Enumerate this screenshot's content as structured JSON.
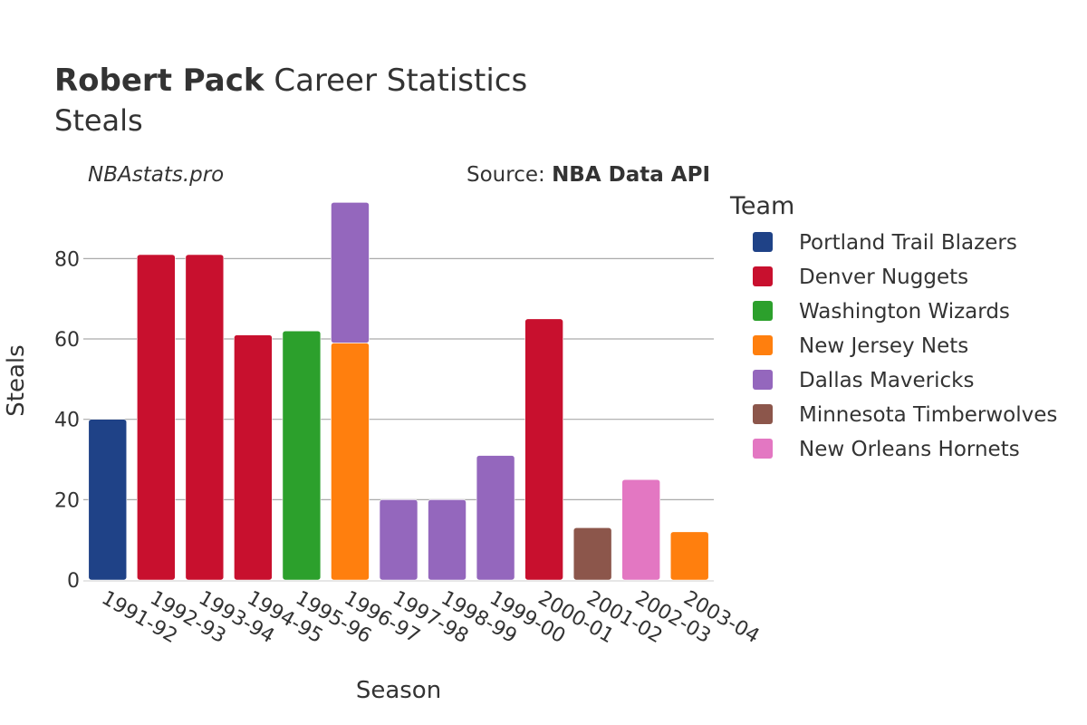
{
  "chart_data": {
    "type": "bar",
    "stacked": true,
    "title": {
      "name": "Robert Pack",
      "rest": "Career Statistics"
    },
    "subtitle": "Steals",
    "watermark": "NBAstats.pro",
    "source": {
      "prefix": "Source: ",
      "name": "NBA Data API"
    },
    "xlabel": "Season",
    "ylabel": "Steals",
    "ylim": [
      0,
      97
    ],
    "yticks": [
      0,
      20,
      40,
      60,
      80
    ],
    "grid": true,
    "legend_title": "Team",
    "legend_placement": "right",
    "categories": [
      "1991-92",
      "1992-93",
      "1993-94",
      "1994-95",
      "1995-96",
      "1996-97",
      "1997-98",
      "1998-99",
      "1999-00",
      "2000-01",
      "2001-02",
      "2002-03",
      "2003-04"
    ],
    "series": [
      {
        "name": "Portland Trail Blazers",
        "color": "#1f4287",
        "values": [
          40,
          0,
          0,
          0,
          0,
          0,
          0,
          0,
          0,
          0,
          0,
          0,
          0
        ]
      },
      {
        "name": "Denver Nuggets",
        "color": "#c8102e",
        "values": [
          0,
          81,
          81,
          61,
          0,
          0,
          0,
          0,
          0,
          65,
          0,
          0,
          0
        ]
      },
      {
        "name": "Washington Wizards",
        "color": "#2ca02c",
        "values": [
          0,
          0,
          0,
          0,
          62,
          0,
          0,
          0,
          0,
          0,
          0,
          0,
          0
        ]
      },
      {
        "name": "New Jersey Nets",
        "color": "#ff7f0e",
        "values": [
          0,
          0,
          0,
          0,
          0,
          59,
          0,
          0,
          0,
          0,
          0,
          0,
          12
        ]
      },
      {
        "name": "Dallas Mavericks",
        "color": "#9467bd",
        "values": [
          0,
          0,
          0,
          0,
          0,
          35,
          20,
          20,
          31,
          0,
          0,
          0,
          0
        ]
      },
      {
        "name": "Minnesota Timberwolves",
        "color": "#8c564b",
        "values": [
          0,
          0,
          0,
          0,
          0,
          0,
          0,
          0,
          0,
          0,
          13,
          0,
          0
        ]
      },
      {
        "name": "New Orleans Hornets",
        "color": "#e377c2",
        "values": [
          0,
          0,
          0,
          0,
          0,
          0,
          0,
          0,
          0,
          0,
          0,
          25,
          0
        ]
      }
    ]
  }
}
